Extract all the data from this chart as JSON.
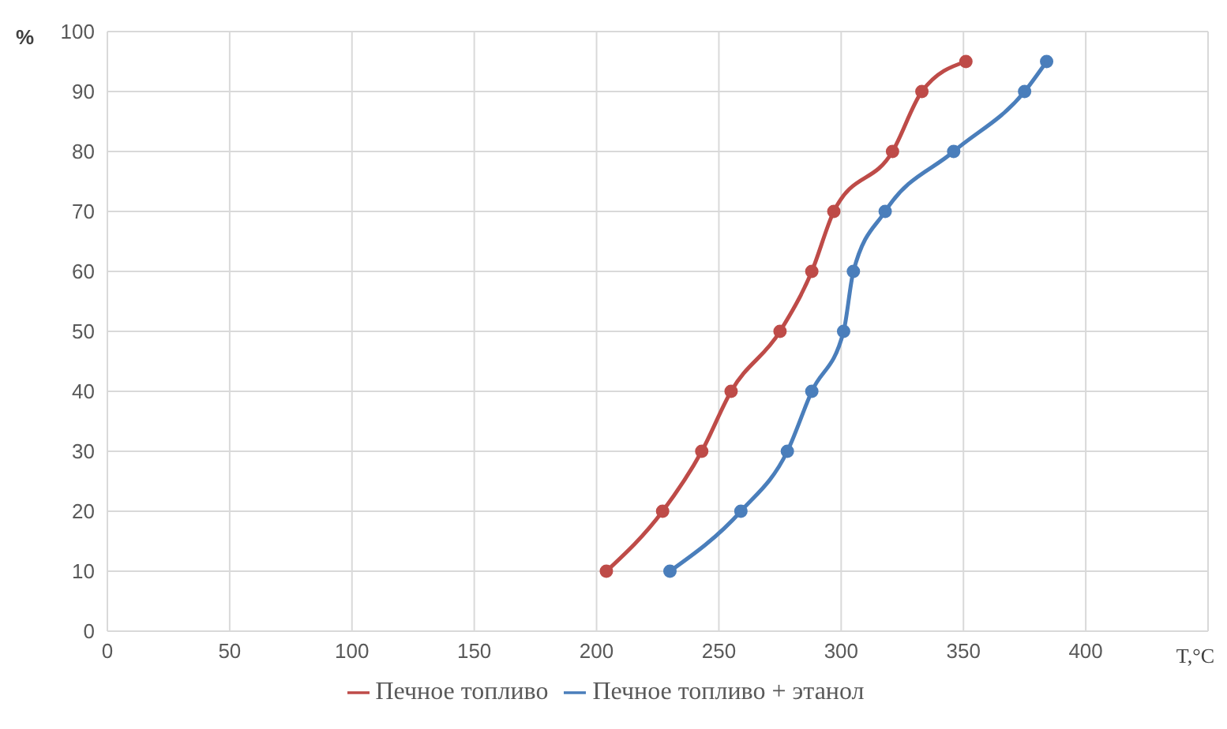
{
  "chart_data": {
    "type": "line",
    "xlabel": "T,°C",
    "ylabel": "%",
    "xlim": [
      0,
      450
    ],
    "xticks": [
      0,
      50,
      100,
      150,
      200,
      250,
      300,
      350,
      400,
      {
        "value": 450,
        "label": null
      }
    ],
    "ylim": [
      0,
      100
    ],
    "yticks": [
      0,
      10,
      20,
      30,
      40,
      50,
      60,
      70,
      80,
      90,
      100
    ],
    "grid": true,
    "legend": "bottom",
    "marker": "circle",
    "line_style": "solid",
    "series": [
      {
        "name": "Печное топливо + этанол",
        "color": "#4a7ebb",
        "x": [
          230,
          259,
          278,
          288,
          301,
          305,
          318,
          346,
          375,
          384
        ],
        "values": [
          10,
          20,
          30,
          40,
          50,
          60,
          70,
          80,
          90,
          95
        ]
      },
      {
        "name": "Печное топливо",
        "color": "#be4b48",
        "x": [
          204,
          227,
          243,
          255,
          275,
          288,
          297,
          321,
          333,
          351
        ],
        "values": [
          10,
          20,
          30,
          40,
          50,
          60,
          70,
          80,
          90,
          95
        ]
      }
    ]
  }
}
